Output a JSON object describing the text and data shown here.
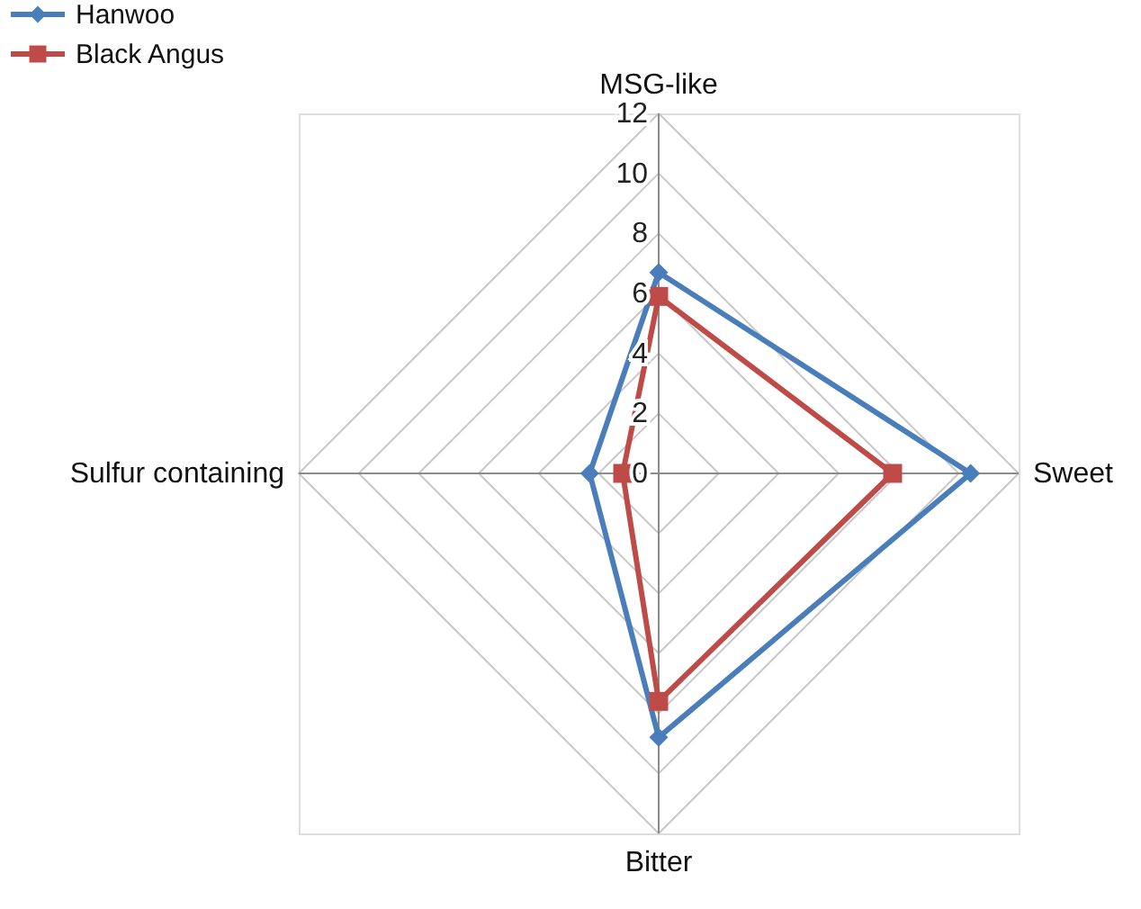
{
  "chart_data": {
    "type": "radar",
    "categories": [
      "MSG-like",
      "Sweet",
      "Bitter",
      "Sulfur containing"
    ],
    "series": [
      {
        "name": "Hanwoo",
        "color": "#4a7ebb",
        "marker": "diamond",
        "values": [
          6.7,
          10.4,
          8.8,
          2.3
        ]
      },
      {
        "name": "Black Angus",
        "color": "#be4b48",
        "marker": "square",
        "values": [
          5.9,
          7.8,
          7.6,
          1.2
        ]
      }
    ],
    "ylim": [
      0,
      12
    ],
    "yticks": [
      0,
      2,
      4,
      6,
      8,
      10,
      12
    ],
    "grid": true,
    "legend": "top left"
  }
}
